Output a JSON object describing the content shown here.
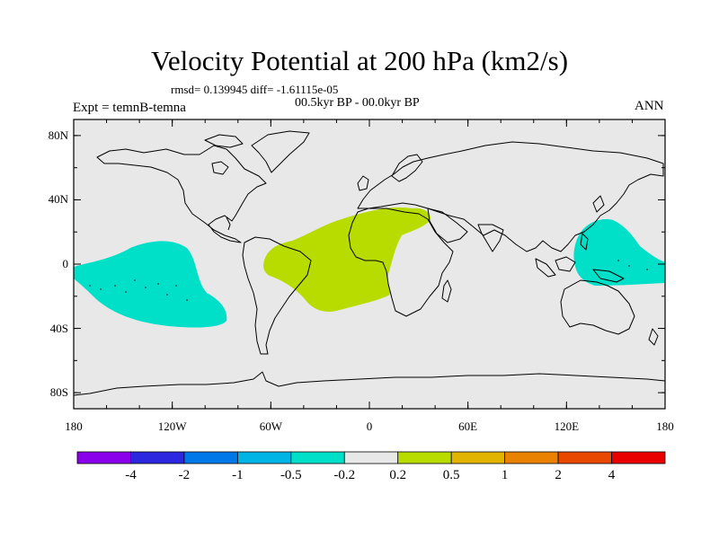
{
  "title": "Velocity Potential at 200 hPa (km2/s)",
  "stats_line": "rmsd= 0.139945  diff= -1.61115e-05",
  "period": "00.5kyr BP - 00.0kyr BP",
  "experiment": "Expt = temnB-temna",
  "season": "ANN",
  "map": {
    "background_color": "#e8e8e8",
    "lat_ticks": [
      {
        "value": 80,
        "label": "80N"
      },
      {
        "value": 40,
        "label": "40N"
      },
      {
        "value": 0,
        "label": "0"
      },
      {
        "value": -40,
        "label": "40S"
      },
      {
        "value": -80,
        "label": "80S"
      }
    ],
    "lon_ticks": [
      {
        "value": -180,
        "label": "180"
      },
      {
        "value": -120,
        "label": "120W"
      },
      {
        "value": -60,
        "label": "60W"
      },
      {
        "value": 0,
        "label": "0"
      },
      {
        "value": 60,
        "label": "60E"
      },
      {
        "value": 120,
        "label": "120E"
      },
      {
        "value": 180,
        "label": "180"
      }
    ],
    "regions": [
      {
        "name": "negative-anomaly-east-pacific",
        "bin": "-0.5 to -0.2",
        "color": "#00e0c8"
      },
      {
        "name": "positive-anomaly-atlantic-africa",
        "bin": "0.2 to 0.5",
        "color": "#b8dc00"
      },
      {
        "name": "negative-anomaly-west-pacific",
        "bin": "-0.5 to -0.2",
        "color": "#00e0c8"
      }
    ]
  },
  "colorbar": {
    "colors": [
      "#8a00ea",
      "#2c28e0",
      "#0078e8",
      "#00b4e6",
      "#00e0c8",
      "#e8e8e8",
      "#b8dc00",
      "#e0b400",
      "#e88200",
      "#e84800",
      "#e80000"
    ],
    "labels": [
      "-4",
      "-2",
      "-1",
      "-0.5",
      "-0.2",
      "0.2",
      "0.5",
      "1",
      "2",
      "4"
    ]
  }
}
